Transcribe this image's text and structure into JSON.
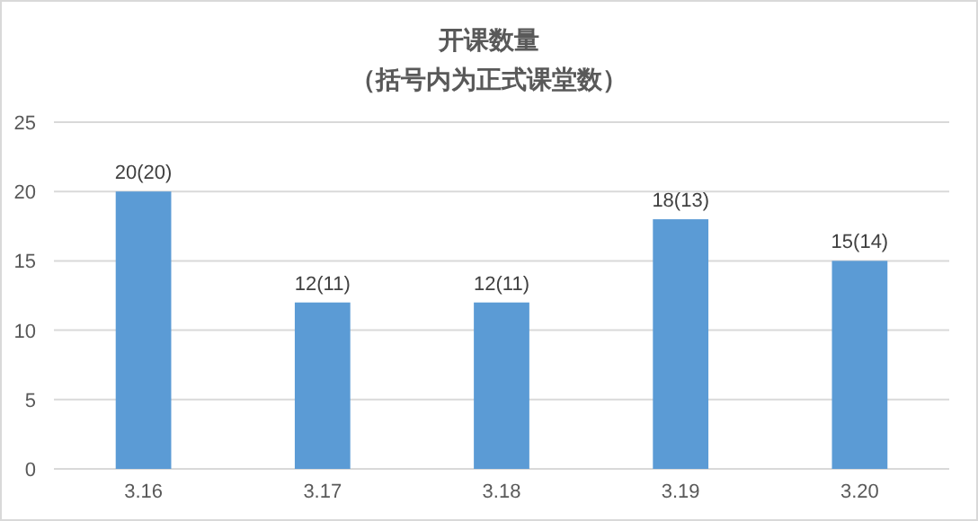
{
  "chart_data": {
    "type": "bar",
    "title": "开课数量",
    "subtitle": "（括号内为正式课堂数）",
    "categories": [
      "3.16",
      "3.17",
      "3.18",
      "3.19",
      "3.20"
    ],
    "values": [
      20,
      12,
      12,
      18,
      15
    ],
    "value_labels": [
      "20(20)",
      "12(11)",
      "12(11)",
      "18(13)",
      "15(14)"
    ],
    "color": "#5b9bd5",
    "ylim": [
      0,
      25
    ],
    "yticks": [
      0,
      5,
      10,
      15,
      20,
      25
    ],
    "grid": "y"
  }
}
